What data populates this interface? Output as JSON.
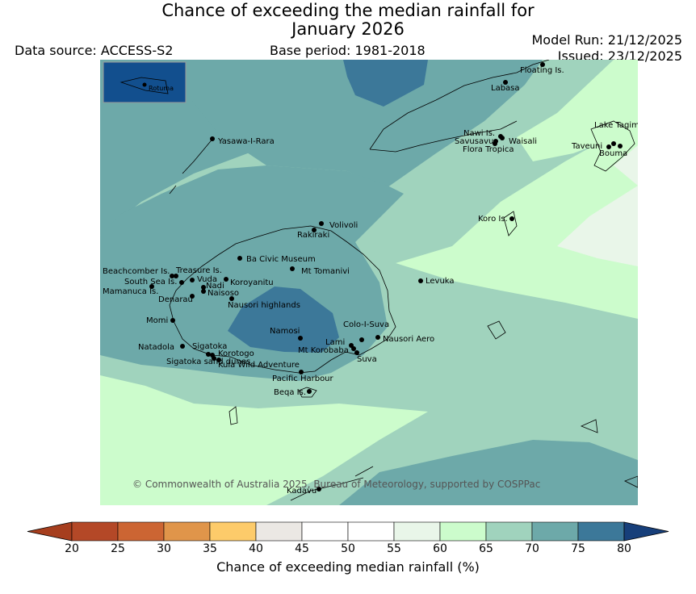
{
  "title_line1": "Chance of exceeding the median rainfall for",
  "title_line2": "January 2026",
  "data_source": "Data source: ACCESS-S2",
  "base_period": "Base period: 1981-2018",
  "model_run": "Model Run: 21/12/2025",
  "issued": "Issued: 23/12/2025",
  "copyright": "© Commonwealth of Australia 2025, Bureau of Meteorology, supported by COSPPac",
  "inset_label": "Rotuma",
  "colorbar": {
    "label": "Chance of exceeding median rainfall (%)",
    "ticks": [
      "20",
      "25",
      "30",
      "35",
      "40",
      "45",
      "50",
      "55",
      "60",
      "65",
      "70",
      "75",
      "80"
    ],
    "colors": [
      "#a63e1e",
      "#b44827",
      "#cc6533",
      "#e0954a",
      "#fdcb6a",
      "#ebe8e4",
      "#ffffff",
      "#ffffff",
      "#e9f6e9",
      "#ccfccc",
      "#a0d3bd",
      "#6da9a9",
      "#3c7899",
      "#173f7a"
    ]
  },
  "places": [
    {
      "name": "Floating Is."
    },
    {
      "name": "Labasa"
    },
    {
      "name": "Yasawa-I-Rara"
    },
    {
      "name": "Nawi Is."
    },
    {
      "name": "Savusavu"
    },
    {
      "name": "Waisali"
    },
    {
      "name": "Flora Tropica"
    },
    {
      "name": "Lake Tagimaucia"
    },
    {
      "name": "Taveuni"
    },
    {
      "name": "Bouma"
    },
    {
      "name": "Volivoli"
    },
    {
      "name": "Rakiraki"
    },
    {
      "name": "Koro Is."
    },
    {
      "name": "Ba Civic Museum"
    },
    {
      "name": "Mt Tomanivi"
    },
    {
      "name": "Beachcomber Is."
    },
    {
      "name": "Treasure Is."
    },
    {
      "name": "South Sea Is."
    },
    {
      "name": "Vuda"
    },
    {
      "name": "Koroyanitu"
    },
    {
      "name": "Nadi"
    },
    {
      "name": "Mamanuca Is."
    },
    {
      "name": "Naisoso"
    },
    {
      "name": "Denarau"
    },
    {
      "name": "Nausori highlands"
    },
    {
      "name": "Levuka"
    },
    {
      "name": "Momi"
    },
    {
      "name": "Namosi"
    },
    {
      "name": "Colo-I-Suva"
    },
    {
      "name": "Natadola"
    },
    {
      "name": "Sigatoka"
    },
    {
      "name": "Lami"
    },
    {
      "name": "Nausori Aero"
    },
    {
      "name": "Korotogo"
    },
    {
      "name": "Mt Korobaba"
    },
    {
      "name": "Sigatoka sand dunes"
    },
    {
      "name": "Kula Wild Adventure"
    },
    {
      "name": "Suva"
    },
    {
      "name": "Pacific Harbour"
    },
    {
      "name": "Beqa Is."
    },
    {
      "name": "Kadavu"
    }
  ]
}
